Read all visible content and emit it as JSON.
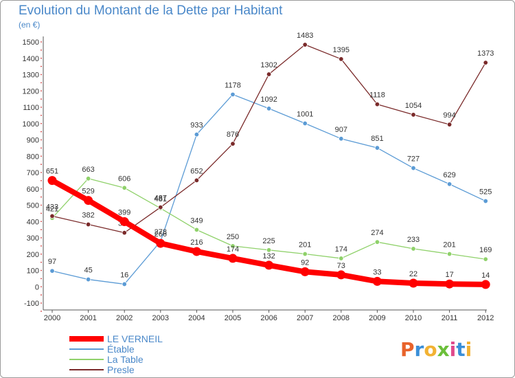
{
  "header": {
    "title": "Evolution du Montant de la Dette par Habitant",
    "unit": "(en €)"
  },
  "logo": {
    "text": "Proxiti",
    "colors": [
      "#e8632b",
      "#3a8fd8",
      "#f2b233",
      "#6bbf3a",
      "#e04a8c",
      "#3a8fd8",
      "#f2b233"
    ]
  },
  "chart_data": {
    "type": "line",
    "categories": [
      "2000",
      "2001",
      "2002",
      "2003",
      "2004",
      "2005",
      "2006",
      "2007",
      "2008",
      "2009",
      "2010",
      "2011",
      "2012"
    ],
    "ylim": [
      -100,
      1500
    ],
    "yticks": [
      -100,
      0,
      100,
      200,
      300,
      400,
      500,
      600,
      700,
      800,
      900,
      1000,
      1100,
      1200,
      1300,
      1400,
      1500
    ],
    "grid": false,
    "legend_position": "bottom-left",
    "series": [
      {
        "name": "LE VERNEIL",
        "color": "#ff0000",
        "emphasis": true,
        "values": [
          651,
          529,
          399,
          266,
          216,
          174,
          132,
          92,
          73,
          33,
          22,
          17,
          14
        ],
        "labels": [
          "651",
          "529",
          "399",
          "266",
          "216",
          "174",
          "132",
          "92",
          "73",
          "33",
          "22",
          "17",
          "14"
        ]
      },
      {
        "name": "Étable",
        "color": "#5b9bd5",
        "values": [
          97,
          45,
          16,
          278,
          933,
          1178,
          1092,
          1001,
          907,
          851,
          727,
          629,
          525
        ],
        "labels": [
          "97",
          "45",
          "16",
          "278",
          "933",
          "1178",
          "1092",
          "1001",
          "907",
          "851",
          "727",
          "629",
          "525"
        ]
      },
      {
        "name": "La Table",
        "color": "#8fd16a",
        "values": [
          421,
          663,
          606,
          481,
          349,
          250,
          225,
          201,
          174,
          274,
          233,
          201,
          169
        ],
        "labels": [
          "421",
          "663",
          "606",
          "481",
          "349",
          "250",
          "225",
          "201",
          "174",
          "274",
          "233",
          "201",
          "169"
        ]
      },
      {
        "name": "Presle",
        "color": "#7a2a2a",
        "values": [
          433,
          382,
          331,
          487,
          652,
          876,
          1302,
          1483,
          1395,
          1118,
          1054,
          994,
          1373
        ],
        "labels": [
          "433",
          "382",
          "331",
          "487",
          "652",
          "876",
          "1302",
          "1483",
          "1395",
          "1118",
          "1054",
          "994",
          "1373"
        ]
      }
    ]
  }
}
